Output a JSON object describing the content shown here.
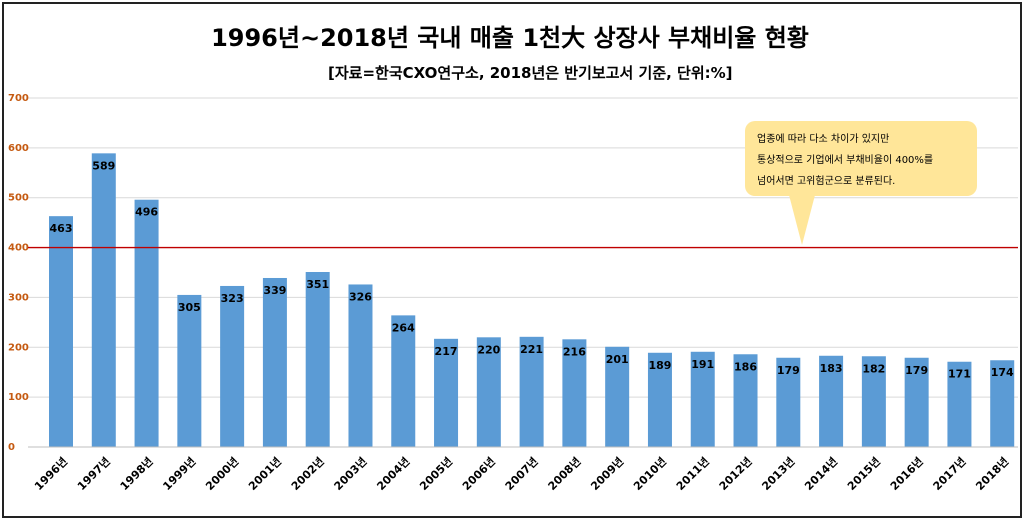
{
  "title": "1996년~2018년 국내 매출 1천大 상장사 부채비율 현황",
  "subtitle": "[자료=한국CXO연구소, 2018년은 반기보고서 기준, 단위:%]",
  "callout": {
    "line1": "업종에 따라 다소 차이가 있지만",
    "line2": "통상적으로 기업에서 부채비율이 400%를",
    "line3": "넘어서면 고위험군으로 분류된다."
  },
  "colors": {
    "bar": "#5b9bd5",
    "reference_line": "#c00000",
    "y_tick_label": "#c55a11",
    "gridline": "#d9d9d9",
    "callout_bg": "#ffe699"
  },
  "chart_data": {
    "type": "bar",
    "categories": [
      "1996년",
      "1997년",
      "1998년",
      "1999년",
      "2000년",
      "2001년",
      "2002년",
      "2003년",
      "2004년",
      "2005년",
      "2006년",
      "2007년",
      "2008년",
      "2009년",
      "2010년",
      "2011년",
      "2012년",
      "2013년",
      "2014년",
      "2015년",
      "2016년",
      "2017년",
      "2018년"
    ],
    "values": [
      463,
      589,
      496,
      305,
      323,
      339,
      351,
      326,
      264,
      217,
      220,
      221,
      216,
      201,
      189,
      191,
      186,
      179,
      183,
      182,
      179,
      171,
      174
    ],
    "ylim": [
      0,
      700
    ],
    "yticks": [
      0,
      100,
      200,
      300,
      400,
      500,
      600,
      700
    ],
    "reference_line": 400,
    "grid": true,
    "legend": "none",
    "data_labels": true
  }
}
